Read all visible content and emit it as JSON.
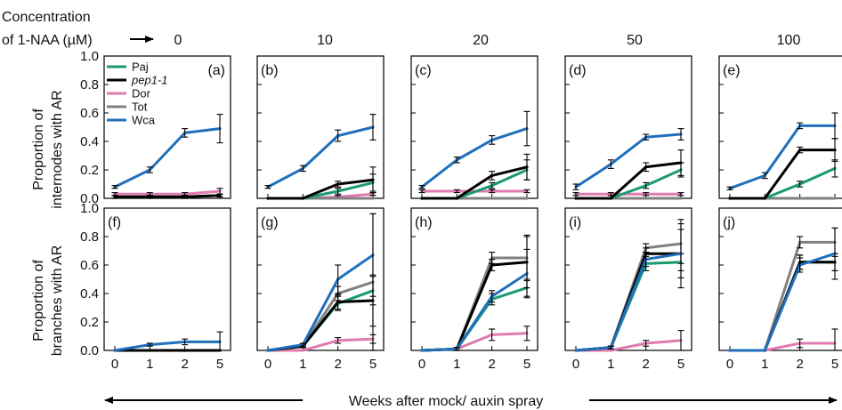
{
  "header": {
    "concentration_label_line1": "Concentration",
    "concentration_label_line2": "of 1-NAA (µM)",
    "concentrations": [
      "0",
      "10",
      "20",
      "50",
      "100"
    ]
  },
  "y_labels": {
    "top_line1": "Proportion of",
    "top_line2": "internodes with AR",
    "bottom_line1": "Proportion of",
    "bottom_line2": "branches with AR"
  },
  "xlabel": "Weeks after mock/ auxin spray",
  "legend": [
    {
      "name": "Paj",
      "italic": false
    },
    {
      "name": "pep1-1",
      "italic": true
    },
    {
      "name": "Dor",
      "italic": false
    },
    {
      "name": "Tot",
      "italic": false
    },
    {
      "name": "Wca",
      "italic": false
    }
  ],
  "colors": {
    "Paj": "#1a9a70",
    "pep1-1": "#000000",
    "Dor": "#e07ab0",
    "Tot": "#808080",
    "Wca": "#1f6fba"
  },
  "chart_data": {
    "type": "line",
    "x_ticks": [
      "0",
      "1",
      "2",
      "5"
    ],
    "ylim": [
      0,
      1.0
    ],
    "y_ticks": [
      "0.0",
      "0.2",
      "0.4",
      "0.6",
      "0.8",
      "1.0"
    ],
    "legend_placement": "top-left of panel (a)",
    "panels": [
      {
        "label": "(a)",
        "row": 0,
        "col": 0,
        "series": [
          {
            "name": "Paj",
            "values": [
              0.01,
              0.01,
              0.01,
              0.02
            ],
            "err": [
              0.01,
              0.01,
              0.01,
              0.01
            ]
          },
          {
            "name": "pep1-1",
            "values": [
              0.01,
              0.01,
              0.01,
              0.02
            ],
            "err": [
              0.01,
              0.01,
              0.01,
              0.01
            ]
          },
          {
            "name": "Dor",
            "values": [
              0.03,
              0.03,
              0.03,
              0.05
            ],
            "err": [
              0.01,
              0.01,
              0.01,
              0.02
            ]
          },
          {
            "name": "Tot",
            "values": [
              0.01,
              0.01,
              0.01,
              0.02
            ],
            "err": [
              0.01,
              0.01,
              0.01,
              0.01
            ]
          },
          {
            "name": "Wca",
            "values": [
              0.08,
              0.2,
              0.46,
              0.49
            ],
            "err": [
              0.01,
              0.02,
              0.03,
              0.1
            ]
          }
        ]
      },
      {
        "label": "(b)",
        "row": 0,
        "col": 1,
        "series": [
          {
            "name": "Paj",
            "values": [
              0.0,
              0.0,
              0.05,
              0.11
            ],
            "err": [
              0.0,
              0.0,
              0.02,
              0.06
            ]
          },
          {
            "name": "pep1-1",
            "values": [
              0.0,
              0.0,
              0.1,
              0.13
            ],
            "err": [
              0.0,
              0.0,
              0.02,
              0.09
            ]
          },
          {
            "name": "Dor",
            "values": [
              0.0,
              0.0,
              0.01,
              0.03
            ],
            "err": [
              0.0,
              0.0,
              0.01,
              0.01
            ]
          },
          {
            "name": "Tot",
            "values": [
              0.0,
              0.0,
              0.0,
              0.0
            ],
            "err": [
              0.0,
              0.0,
              0.0,
              0.0
            ]
          },
          {
            "name": "Wca",
            "values": [
              0.08,
              0.21,
              0.44,
              0.5
            ],
            "err": [
              0.01,
              0.02,
              0.04,
              0.09
            ]
          }
        ]
      },
      {
        "label": "(c)",
        "row": 0,
        "col": 2,
        "series": [
          {
            "name": "Paj",
            "values": [
              0.0,
              0.0,
              0.09,
              0.2
            ],
            "err": [
              0.0,
              0.0,
              0.02,
              0.07
            ]
          },
          {
            "name": "pep1-1",
            "values": [
              0.0,
              0.0,
              0.16,
              0.22
            ],
            "err": [
              0.0,
              0.0,
              0.03,
              0.09
            ]
          },
          {
            "name": "Dor",
            "values": [
              0.05,
              0.05,
              0.05,
              0.05
            ],
            "err": [
              0.01,
              0.01,
              0.01,
              0.01
            ]
          },
          {
            "name": "Tot",
            "values": [
              0.0,
              0.0,
              0.0,
              0.0
            ],
            "err": [
              0.0,
              0.0,
              0.0,
              0.0
            ]
          },
          {
            "name": "Wca",
            "values": [
              0.08,
              0.27,
              0.41,
              0.49
            ],
            "err": [
              0.01,
              0.02,
              0.03,
              0.12
            ]
          }
        ]
      },
      {
        "label": "(d)",
        "row": 0,
        "col": 3,
        "series": [
          {
            "name": "Paj",
            "values": [
              0.0,
              0.0,
              0.09,
              0.2
            ],
            "err": [
              0.0,
              0.0,
              0.02,
              0.05
            ]
          },
          {
            "name": "pep1-1",
            "values": [
              0.0,
              0.0,
              0.22,
              0.25
            ],
            "err": [
              0.0,
              0.0,
              0.03,
              0.09
            ]
          },
          {
            "name": "Dor",
            "values": [
              0.03,
              0.03,
              0.03,
              0.03
            ],
            "err": [
              0.01,
              0.01,
              0.01,
              0.01
            ]
          },
          {
            "name": "Tot",
            "values": [
              0.0,
              0.0,
              0.0,
              0.0
            ],
            "err": [
              0.0,
              0.0,
              0.0,
              0.0
            ]
          },
          {
            "name": "Wca",
            "values": [
              0.08,
              0.24,
              0.43,
              0.45
            ],
            "err": [
              0.02,
              0.03,
              0.02,
              0.04
            ]
          }
        ]
      },
      {
        "label": "(e)",
        "row": 0,
        "col": 4,
        "series": [
          {
            "name": "Paj",
            "values": [
              0.0,
              0.0,
              0.1,
              0.21
            ],
            "err": [
              0.0,
              0.0,
              0.02,
              0.06
            ]
          },
          {
            "name": "pep1-1",
            "values": [
              0.0,
              0.0,
              0.34,
              0.34
            ],
            "err": [
              0.0,
              0.0,
              0.02,
              0.08
            ]
          },
          {
            "name": "Dor",
            "values": [
              0.0,
              0.0,
              0.0,
              0.0
            ],
            "err": [
              0.0,
              0.0,
              0.0,
              0.0
            ]
          },
          {
            "name": "Tot",
            "values": [
              0.0,
              0.0,
              0.0,
              0.0
            ],
            "err": [
              0.0,
              0.0,
              0.0,
              0.0
            ]
          },
          {
            "name": "Wca",
            "values": [
              0.07,
              0.16,
              0.51,
              0.51
            ],
            "err": [
              0.01,
              0.02,
              0.02,
              0.09
            ]
          }
        ]
      },
      {
        "label": "(f)",
        "row": 1,
        "col": 0,
        "series": [
          {
            "name": "Paj",
            "values": [
              0.0,
              0.0,
              0.0,
              0.0
            ],
            "err": [
              0.0,
              0.0,
              0.0,
              0.0
            ]
          },
          {
            "name": "pep1-1",
            "values": [
              0.0,
              0.0,
              0.0,
              0.0
            ],
            "err": [
              0.0,
              0.0,
              0.0,
              0.0
            ]
          },
          {
            "name": "Dor",
            "values": [
              0.0,
              0.0,
              0.0,
              0.0
            ],
            "err": [
              0.0,
              0.0,
              0.0,
              0.0
            ]
          },
          {
            "name": "Tot",
            "values": [
              0.0,
              0.0,
              0.0,
              0.0
            ],
            "err": [
              0.0,
              0.0,
              0.0,
              0.0
            ]
          },
          {
            "name": "Wca",
            "values": [
              0.0,
              0.04,
              0.06,
              0.06
            ],
            "err": [
              0.0,
              0.01,
              0.02,
              0.07
            ]
          }
        ]
      },
      {
        "label": "(g)",
        "row": 1,
        "col": 1,
        "series": [
          {
            "name": "Paj",
            "values": [
              0.0,
              0.03,
              0.33,
              0.42
            ],
            "err": [
              0.0,
              0.01,
              0.05,
              0.1
            ]
          },
          {
            "name": "pep1-1",
            "values": [
              0.0,
              0.03,
              0.34,
              0.35
            ],
            "err": [
              0.0,
              0.01,
              0.05,
              0.18
            ]
          },
          {
            "name": "Dor",
            "values": [
              0.0,
              0.0,
              0.07,
              0.08
            ],
            "err": [
              0.0,
              0.0,
              0.02,
              0.03
            ]
          },
          {
            "name": "Tot",
            "values": [
              0.0,
              0.03,
              0.4,
              0.48
            ],
            "err": [
              0.0,
              0.01,
              0.05,
              0.48
            ]
          },
          {
            "name": "Wca",
            "values": [
              0.0,
              0.04,
              0.5,
              0.67
            ],
            "err": [
              0.0,
              0.01,
              0.1,
              0.29
            ]
          }
        ]
      },
      {
        "label": "(h)",
        "row": 1,
        "col": 2,
        "series": [
          {
            "name": "Paj",
            "values": [
              0.0,
              0.01,
              0.36,
              0.44
            ],
            "err": [
              0.0,
              0.01,
              0.04,
              0.06
            ]
          },
          {
            "name": "pep1-1",
            "values": [
              0.0,
              0.01,
              0.6,
              0.62
            ],
            "err": [
              0.0,
              0.01,
              0.04,
              0.18
            ]
          },
          {
            "name": "Dor",
            "values": [
              0.0,
              0.01,
              0.11,
              0.12
            ],
            "err": [
              0.0,
              0.0,
              0.04,
              0.05
            ]
          },
          {
            "name": "Tot",
            "values": [
              0.0,
              0.01,
              0.65,
              0.65
            ],
            "err": [
              0.0,
              0.01,
              0.04,
              0.16
            ]
          },
          {
            "name": "Wca",
            "values": [
              0.0,
              0.01,
              0.38,
              0.54
            ],
            "err": [
              0.0,
              0.01,
              0.04,
              0.17
            ]
          }
        ]
      },
      {
        "label": "(i)",
        "row": 1,
        "col": 3,
        "series": [
          {
            "name": "Paj",
            "values": [
              0.0,
              0.02,
              0.61,
              0.62
            ],
            "err": [
              0.0,
              0.01,
              0.05,
              0.06
            ]
          },
          {
            "name": "pep1-1",
            "values": [
              0.0,
              0.02,
              0.68,
              0.68
            ],
            "err": [
              0.0,
              0.01,
              0.04,
              0.24
            ]
          },
          {
            "name": "Dor",
            "values": [
              0.0,
              0.0,
              0.05,
              0.07
            ],
            "err": [
              0.0,
              0.0,
              0.02,
              0.07
            ]
          },
          {
            "name": "Tot",
            "values": [
              0.0,
              0.02,
              0.72,
              0.75
            ],
            "err": [
              0.0,
              0.01,
              0.03,
              0.14
            ]
          },
          {
            "name": "Wca",
            "values": [
              0.0,
              0.02,
              0.64,
              0.68
            ],
            "err": [
              0.0,
              0.01,
              0.05,
              0.17
            ]
          }
        ]
      },
      {
        "label": "(j)",
        "row": 1,
        "col": 4,
        "series": [
          {
            "name": "Paj",
            "values": [
              0.0,
              0.0,
              0.62,
              0.62
            ],
            "err": [
              0.0,
              0.0,
              0.05,
              0.06
            ]
          },
          {
            "name": "pep1-1",
            "values": [
              0.0,
              0.0,
              0.62,
              0.62
            ],
            "err": [
              0.0,
              0.0,
              0.05,
              0.06
            ]
          },
          {
            "name": "Dor",
            "values": [
              0.0,
              0.0,
              0.05,
              0.05
            ],
            "err": [
              0.0,
              0.0,
              0.03,
              0.1
            ]
          },
          {
            "name": "Tot",
            "values": [
              0.0,
              0.0,
              0.76,
              0.76
            ],
            "err": [
              0.0,
              0.0,
              0.04,
              0.1
            ]
          },
          {
            "name": "Wca",
            "values": [
              0.0,
              0.0,
              0.6,
              0.68
            ],
            "err": [
              0.0,
              0.0,
              0.05,
              0.18
            ]
          }
        ]
      }
    ]
  }
}
